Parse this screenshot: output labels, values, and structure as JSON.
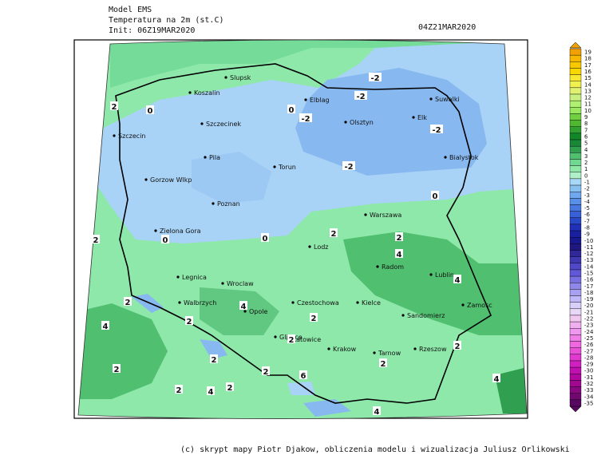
{
  "header": {
    "model": "Model EMS",
    "variable": "Temperatura na 2m (st.C)",
    "init": "Init: 06Z19MAR2020",
    "valid": "04Z21MAR2020"
  },
  "cities": [
    "Slupsk",
    "Koszalin",
    "Elblag",
    "Olsztyn",
    "Suwalki",
    "Szczecin",
    "Szczecinek",
    "Elk",
    "Bialystok",
    "Pila",
    "Torun",
    "Gorzow Wlkp",
    "Poznan",
    "Zielona Gora",
    "Warszawa",
    "Lodz",
    "Radom",
    "Lublin",
    "Legnica",
    "Wroclaw",
    "Walbrzych",
    "Opole",
    "Czestochowa",
    "Kielce",
    "Zamosc",
    "Sandomierz",
    "Gliwice",
    "Katowice",
    "Krakow",
    "Tarnow",
    "Rzeszow"
  ],
  "contour_labels": [
    -2,
    -2,
    -2,
    -2,
    -2,
    0,
    0,
    0,
    0,
    0,
    2,
    2,
    2,
    2,
    4,
    4,
    2,
    4,
    2,
    4,
    2,
    2,
    2,
    2,
    2,
    2,
    2,
    4,
    2,
    6,
    4,
    4,
    2
  ],
  "colorbar": {
    "ticks": [
      19,
      18,
      17,
      16,
      15,
      14,
      13,
      12,
      11,
      10,
      9,
      8,
      7,
      6,
      5,
      4,
      3,
      2,
      1,
      0,
      -1,
      -2,
      -3,
      -4,
      -5,
      -6,
      -7,
      -8,
      -9,
      -10,
      -11,
      -12,
      -13,
      -14,
      -15,
      -16,
      -17,
      -18,
      -19,
      -20,
      -21,
      -22,
      -23,
      -24,
      -25,
      -26,
      -27,
      -28,
      -29,
      -30,
      -31,
      -32,
      -33,
      -34,
      -35
    ],
    "colors": [
      "#f0a000",
      "#f8b800",
      "#f8c800",
      "#f8d800",
      "#f8e830",
      "#f0f050",
      "#e0f070",
      "#c8f080",
      "#b0f070",
      "#98e860",
      "#70d040",
      "#50b830",
      "#30a030",
      "#108828",
      "#188838",
      "#30a050",
      "#50c070",
      "#70d890",
      "#90e8a8",
      "#b0f0c8",
      "#a8d8f8",
      "#88c0f0",
      "#70a8f0",
      "#5890e8",
      "#4878e0",
      "#3860d8",
      "#2848c8",
      "#2030b8",
      "#1820a0",
      "#181890",
      "#201880",
      "#302898",
      "#4038b0",
      "#5048c8",
      "#6058d8",
      "#7870e0",
      "#9088e8",
      "#a8a0f0",
      "#c0b8f8",
      "#d8d0f8",
      "#e8d8f8",
      "#f0c8f0",
      "#f0b0f0",
      "#f098f0",
      "#f080e8",
      "#f068e0",
      "#e850d8",
      "#e038d0",
      "#d020c0",
      "#c010b0",
      "#b008a0",
      "#a00890",
      "#880880",
      "#700870",
      "#580860"
    ]
  },
  "footer": "(c) skrypt mapy Piotr Djakow, obliczenia modelu i wizualizacja Juliusz Orlikowski"
}
